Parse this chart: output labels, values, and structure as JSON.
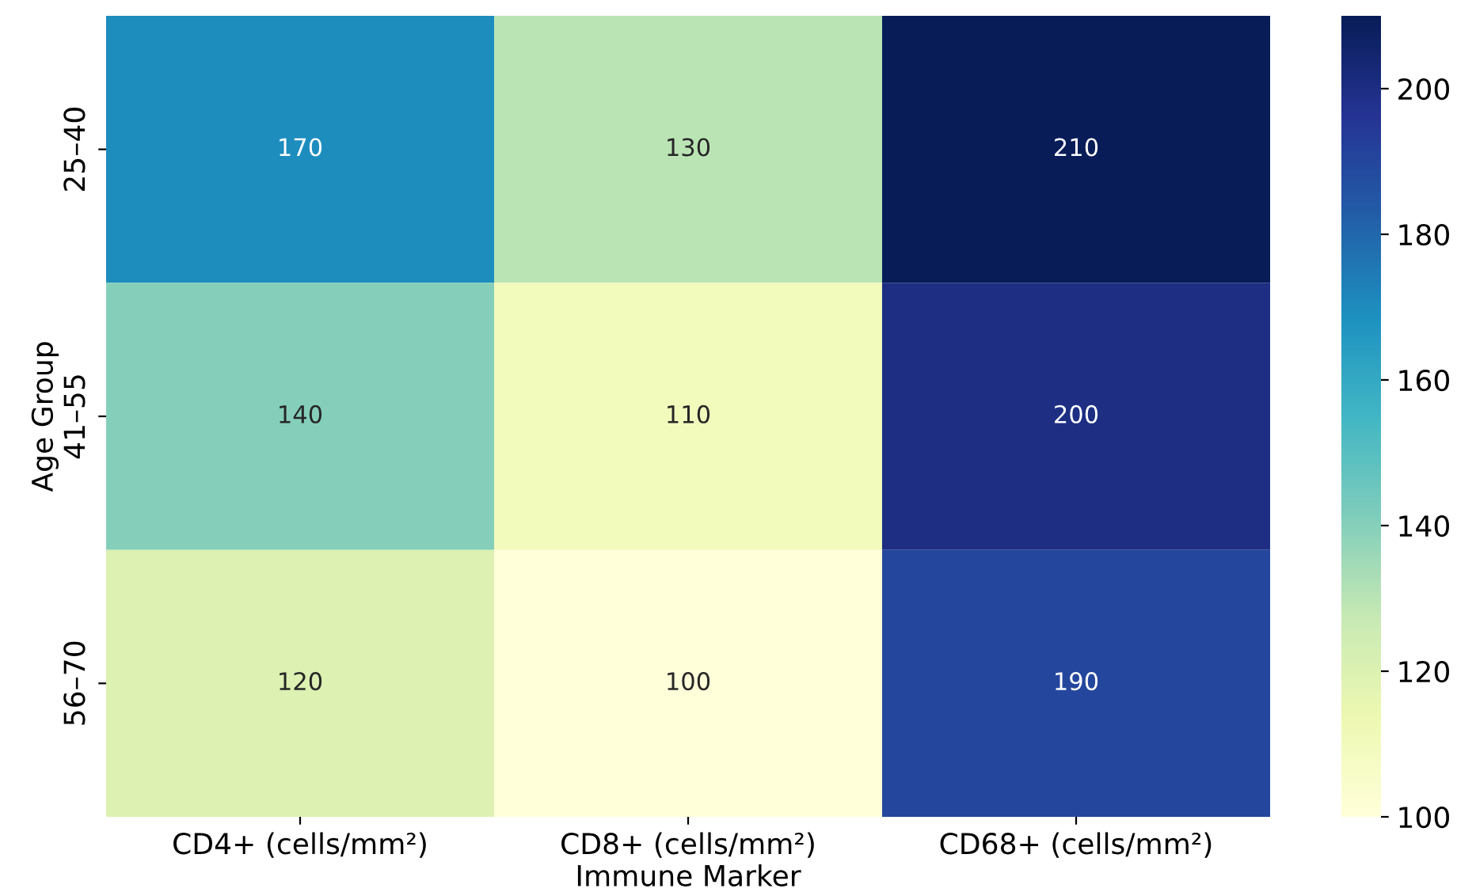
{
  "chart_data": {
    "type": "heatmap",
    "xlabel": "Immune Marker",
    "ylabel": "Age Group",
    "categories": [
      "CD4+ (cells/mm²)",
      "CD8+ (cells/mm²)",
      "CD68+ (cells/mm²)"
    ],
    "y_categories": [
      "25–40",
      "41–55",
      "56–70"
    ],
    "cells": [
      [
        170,
        130,
        210
      ],
      [
        140,
        110,
        200
      ],
      [
        120,
        100,
        190
      ]
    ],
    "data_labels": true,
    "clim": [
      100,
      210
    ],
    "cticks": [
      100,
      120,
      140,
      160,
      180,
      200
    ]
  }
}
